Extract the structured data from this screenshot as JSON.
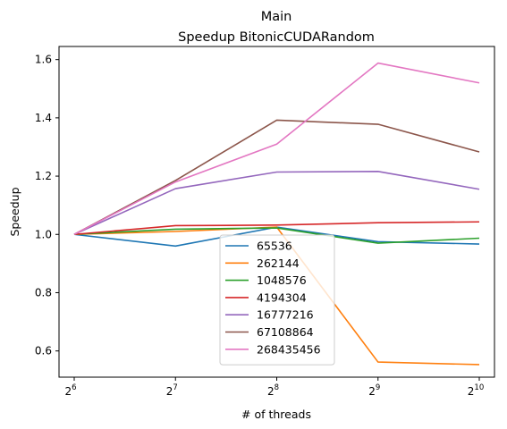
{
  "chart_data": {
    "type": "line",
    "title": "Main",
    "subtitle": "Speedup BitonicCUDARandom",
    "xlabel": "# of threads",
    "ylabel": "Speedup",
    "x_scale": "log2",
    "x_ticks": [
      {
        "value": 64,
        "base": "2",
        "exp": "6"
      },
      {
        "value": 128,
        "base": "2",
        "exp": "7"
      },
      {
        "value": 256,
        "base": "2",
        "exp": "8"
      },
      {
        "value": 512,
        "base": "2",
        "exp": "9"
      },
      {
        "value": 1024,
        "base": "2",
        "exp": "10"
      }
    ],
    "y_ticks": [
      "0.6",
      "0.8",
      "1.0",
      "1.2",
      "1.4",
      "1.6"
    ],
    "ylim": [
      0.51,
      1.645
    ],
    "x": [
      64,
      128,
      256,
      512,
      1024
    ],
    "grid": false,
    "legend_position": "lower-center",
    "series": [
      {
        "name": "65536",
        "color": "#1f77b4",
        "values": [
          1.0,
          0.96,
          1.025,
          0.975,
          0.967
        ]
      },
      {
        "name": "262144",
        "color": "#ff7f0e",
        "values": [
          1.0,
          1.01,
          1.025,
          0.562,
          0.553
        ]
      },
      {
        "name": "1048576",
        "color": "#2ca02c",
        "values": [
          1.0,
          1.018,
          1.022,
          0.97,
          0.987
        ]
      },
      {
        "name": "4194304",
        "color": "#d62728",
        "values": [
          1.0,
          1.03,
          1.032,
          1.04,
          1.043
        ]
      },
      {
        "name": "16777216",
        "color": "#9467bd",
        "values": [
          1.0,
          1.157,
          1.214,
          1.216,
          1.155
        ]
      },
      {
        "name": "67108864",
        "color": "#8c564b",
        "values": [
          1.0,
          1.185,
          1.392,
          1.378,
          1.283
        ]
      },
      {
        "name": "268435456",
        "color": "#e377c2",
        "values": [
          1.0,
          1.18,
          1.31,
          1.588,
          1.52
        ]
      }
    ]
  }
}
